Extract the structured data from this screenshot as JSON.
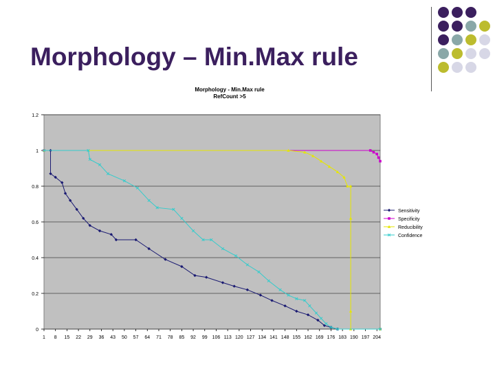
{
  "slide": {
    "title": "Morphology – Min.Max rule",
    "dot_colors": {
      "purple": "#3b1f5e",
      "teal": "#8aa8a8",
      "olive": "#bcbc2e",
      "lavender": "#d7d7e6"
    }
  },
  "chart_data": {
    "type": "line",
    "title": "Morphology - Min.Max rule",
    "subtitle": "RefCount >5",
    "ylim": [
      0,
      1.2
    ],
    "xlim": [
      1,
      206
    ],
    "y_ticks": [
      "0",
      "0.2",
      "0.4",
      "0.6",
      "0.8",
      "1",
      "1.2"
    ],
    "x_ticks": [
      "1",
      "8",
      "15",
      "22",
      "29",
      "36",
      "43",
      "50",
      "57",
      "64",
      "71",
      "78",
      "85",
      "92",
      "99",
      "106",
      "113",
      "120",
      "127",
      "134",
      "141",
      "148",
      "155",
      "162",
      "169",
      "176",
      "183",
      "190",
      "197",
      "204"
    ],
    "grid": true,
    "plot_background": "#c0c0c0",
    "legend_position": "right",
    "series": [
      {
        "name": "Sensitivity",
        "color": "#1a1a72",
        "marker": "diamond",
        "points": [
          [
            1,
            1
          ],
          [
            5,
            1
          ],
          [
            5,
            0.87
          ],
          [
            8,
            0.85
          ],
          [
            12,
            0.82
          ],
          [
            14,
            0.76
          ],
          [
            17,
            0.72
          ],
          [
            21,
            0.67
          ],
          [
            25,
            0.62
          ],
          [
            29,
            0.58
          ],
          [
            35,
            0.55
          ],
          [
            42,
            0.53
          ],
          [
            45,
            0.5
          ],
          [
            57,
            0.5
          ],
          [
            65,
            0.45
          ],
          [
            75,
            0.39
          ],
          [
            85,
            0.35
          ],
          [
            93,
            0.3
          ],
          [
            100,
            0.29
          ],
          [
            110,
            0.26
          ],
          [
            117,
            0.24
          ],
          [
            125,
            0.22
          ],
          [
            133,
            0.19
          ],
          [
            140,
            0.16
          ],
          [
            148,
            0.13
          ],
          [
            155,
            0.1
          ],
          [
            162,
            0.08
          ],
          [
            168,
            0.05
          ],
          [
            172,
            0.02
          ],
          [
            176,
            0.01
          ],
          [
            180,
            0
          ],
          [
            206,
            0
          ]
        ]
      },
      {
        "name": "Specificity",
        "color": "#cc00cc",
        "marker": "square",
        "points": [
          [
            1,
            1
          ],
          [
            200,
            1
          ],
          [
            202,
            0.99
          ],
          [
            204,
            0.98
          ],
          [
            205,
            0.96
          ],
          [
            206,
            0.94
          ]
        ]
      },
      {
        "name": "Reducibility",
        "color": "#e6e600",
        "marker": "triangle",
        "points": [
          [
            1,
            1
          ],
          [
            150,
            1
          ],
          [
            160,
            0.99
          ],
          [
            165,
            0.97
          ],
          [
            170,
            0.94
          ],
          [
            175,
            0.91
          ],
          [
            180,
            0.88
          ],
          [
            184,
            0.85
          ],
          [
            186,
            0.8
          ],
          [
            188,
            0.8
          ],
          [
            188,
            0.62
          ],
          [
            188,
            0.1
          ],
          [
            188,
            0
          ],
          [
            206,
            0
          ]
        ]
      },
      {
        "name": "Confidence",
        "color": "#33cccc",
        "marker": "x",
        "points": [
          [
            1,
            1
          ],
          [
            28,
            1
          ],
          [
            29,
            0.95
          ],
          [
            35,
            0.92
          ],
          [
            40,
            0.87
          ],
          [
            50,
            0.83
          ],
          [
            58,
            0.79
          ],
          [
            65,
            0.72
          ],
          [
            70,
            0.68
          ],
          [
            80,
            0.67
          ],
          [
            85,
            0.62
          ],
          [
            92,
            0.55
          ],
          [
            98,
            0.5
          ],
          [
            103,
            0.5
          ],
          [
            110,
            0.45
          ],
          [
            118,
            0.41
          ],
          [
            125,
            0.36
          ],
          [
            132,
            0.32
          ],
          [
            138,
            0.27
          ],
          [
            145,
            0.22
          ],
          [
            150,
            0.19
          ],
          [
            155,
            0.17
          ],
          [
            160,
            0.16
          ],
          [
            163,
            0.13
          ],
          [
            167,
            0.09
          ],
          [
            170,
            0.06
          ],
          [
            173,
            0.03
          ],
          [
            176,
            0.01
          ],
          [
            180,
            0
          ],
          [
            206,
            0
          ]
        ]
      }
    ]
  }
}
